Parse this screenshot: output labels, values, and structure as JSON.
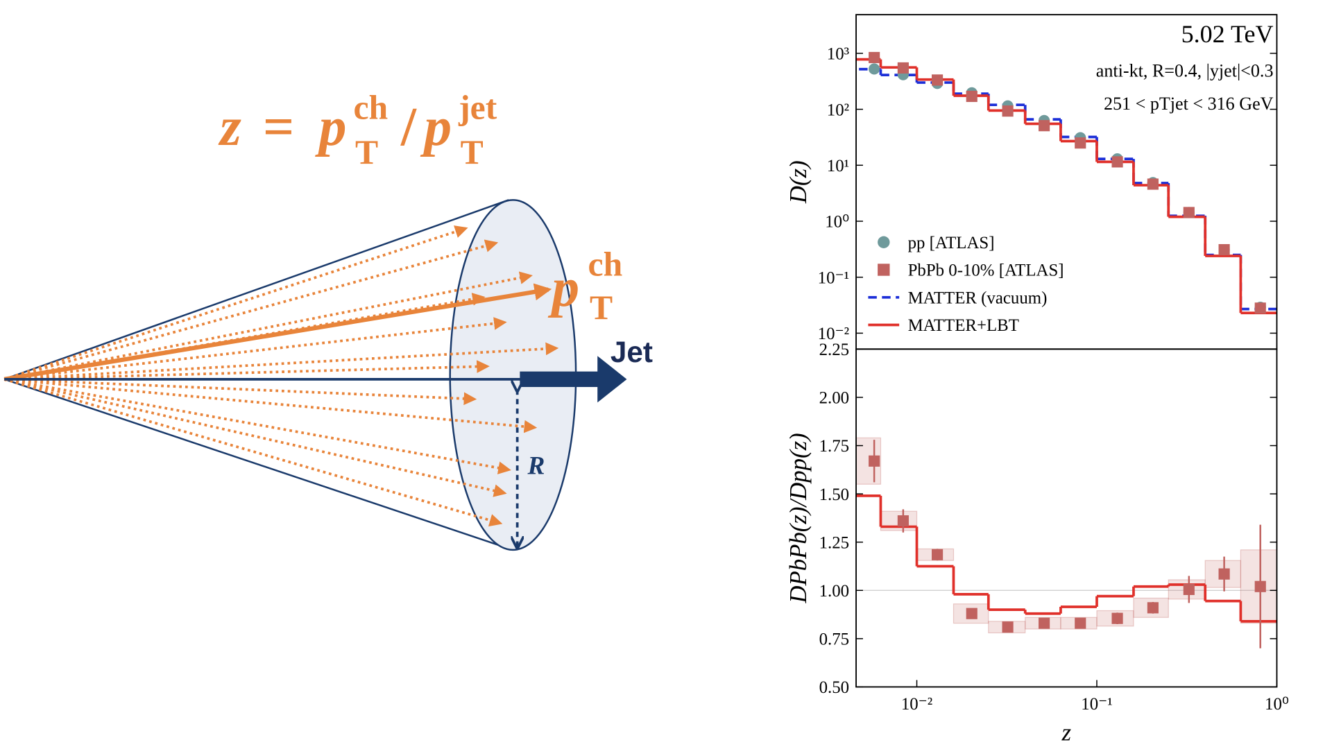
{
  "diagram": {
    "formula": [
      "z",
      "=",
      "p",
      "ch",
      "T",
      "/",
      "p",
      "jet",
      "T"
    ],
    "pt_label": [
      "p",
      "ch",
      "T"
    ],
    "jet_label": "Jet",
    "radius_label": "R"
  },
  "chart_data": [
    {
      "type": "step",
      "xscale": "log",
      "yscale": "log",
      "ylabel": "D(z)",
      "annotations": [
        "5.02 TeV",
        "anti-kt, R=0.4, |yjet|<0.3",
        "251 < pTjet < 316 GeV"
      ],
      "xlim": [
        0.0046,
        1
      ],
      "ylim": [
        0.0052,
        4900
      ],
      "yticks": [
        {
          "value": 0.01,
          "label": "10⁻²"
        },
        {
          "value": 0.1,
          "label": "10⁻¹"
        },
        {
          "value": 1,
          "label": "10⁰"
        },
        {
          "value": 10,
          "label": "10¹"
        },
        {
          "value": 100,
          "label": "10²"
        },
        {
          "value": 1000,
          "label": "10³"
        }
      ],
      "bins": [
        0.004,
        0.0063,
        0.01,
        0.016,
        0.025,
        0.04,
        0.063,
        0.1,
        0.16,
        0.25,
        0.4,
        0.63,
        1
      ],
      "x": [
        0.0058,
        0.0084,
        0.013,
        0.0202,
        0.032,
        0.051,
        0.081,
        0.13,
        0.205,
        0.325,
        0.51,
        0.81
      ],
      "legend": "lower left",
      "series": [
        {
          "name": "pp [ATLAS]",
          "color": "#6f9a9b",
          "marker": "circle",
          "values": [
            525,
            415,
            290,
            197,
            115,
            63,
            31,
            13,
            4.9,
            1.43,
            0.31,
            0.029
          ]
        },
        {
          "name": "PbPb 0-10% [ATLAS]",
          "color": "#c0625f",
          "marker": "square",
          "values": [
            840,
            548,
            333,
            170,
            93,
            51,
            25,
            11.5,
            4.6,
            1.43,
            0.31,
            0.028
          ]
        },
        {
          "name": "MATTER (vacuum)",
          "color": "#1c2fd8",
          "marker": "step",
          "dash": true,
          "values": [
            520,
            410,
            300,
            190,
            120,
            66,
            32,
            13,
            4.8,
            1.25,
            0.25,
            0.027
          ]
        },
        {
          "name": "MATTER+LBT",
          "color": "#e0302a",
          "marker": "step",
          "dash": false,
          "values": [
            780,
            560,
            340,
            175,
            95,
            55,
            27,
            11.5,
            4.4,
            1.2,
            0.24,
            0.023
          ]
        }
      ]
    },
    {
      "type": "step",
      "xscale": "log",
      "ylabel": "DPbPb(z)/Dpp(z)",
      "xlabel": "z",
      "xlim": [
        0.0046,
        1
      ],
      "ylim": [
        0.5,
        2.25
      ],
      "hline": 1,
      "xticks": [
        {
          "value": 0.01,
          "label": "10⁻²"
        },
        {
          "value": 0.1,
          "label": "10⁻¹"
        },
        {
          "value": 1,
          "label": "10⁰"
        }
      ],
      "yticks": [
        {
          "value": 0.5,
          "label": "0.50"
        },
        {
          "value": 0.75,
          "label": "0.75"
        },
        {
          "value": 1,
          "label": "1.00"
        },
        {
          "value": 1.25,
          "label": "1.25"
        },
        {
          "value": 1.5,
          "label": "1.50"
        },
        {
          "value": 1.75,
          "label": "1.75"
        },
        {
          "value": 2,
          "label": "2.00"
        },
        {
          "value": 2.25,
          "label": "2.25"
        }
      ],
      "bins": [
        0.004,
        0.0063,
        0.01,
        0.016,
        0.025,
        0.04,
        0.063,
        0.1,
        0.16,
        0.25,
        0.4,
        0.63,
        1
      ],
      "x": [
        0.0058,
        0.0084,
        0.013,
        0.0202,
        0.032,
        0.051,
        0.081,
        0.13,
        0.205,
        0.325,
        0.51,
        0.81
      ],
      "series": [
        {
          "color": "#c0625f",
          "marker": "square",
          "values": [
            1.67,
            1.36,
            1.185,
            0.88,
            0.81,
            0.83,
            0.83,
            0.855,
            0.91,
            1.005,
            1.085,
            1.02
          ],
          "errors": [
            0.11,
            0.06,
            0.03,
            0.02,
            0.02,
            0.02,
            0.02,
            0.03,
            0.03,
            0.07,
            0.09,
            0.32
          ],
          "sys": [
            0.12,
            0.05,
            0.03,
            0.05,
            0.03,
            0.03,
            0.03,
            0.04,
            0.05,
            0.05,
            0.07,
            0.19
          ]
        },
        {
          "color": "#e0302a",
          "marker": "step",
          "dash": false,
          "values": [
            1.49,
            1.33,
            1.125,
            0.98,
            0.9,
            0.88,
            0.915,
            0.97,
            1.02,
            1.03,
            0.945,
            0.84
          ]
        }
      ]
    }
  ]
}
